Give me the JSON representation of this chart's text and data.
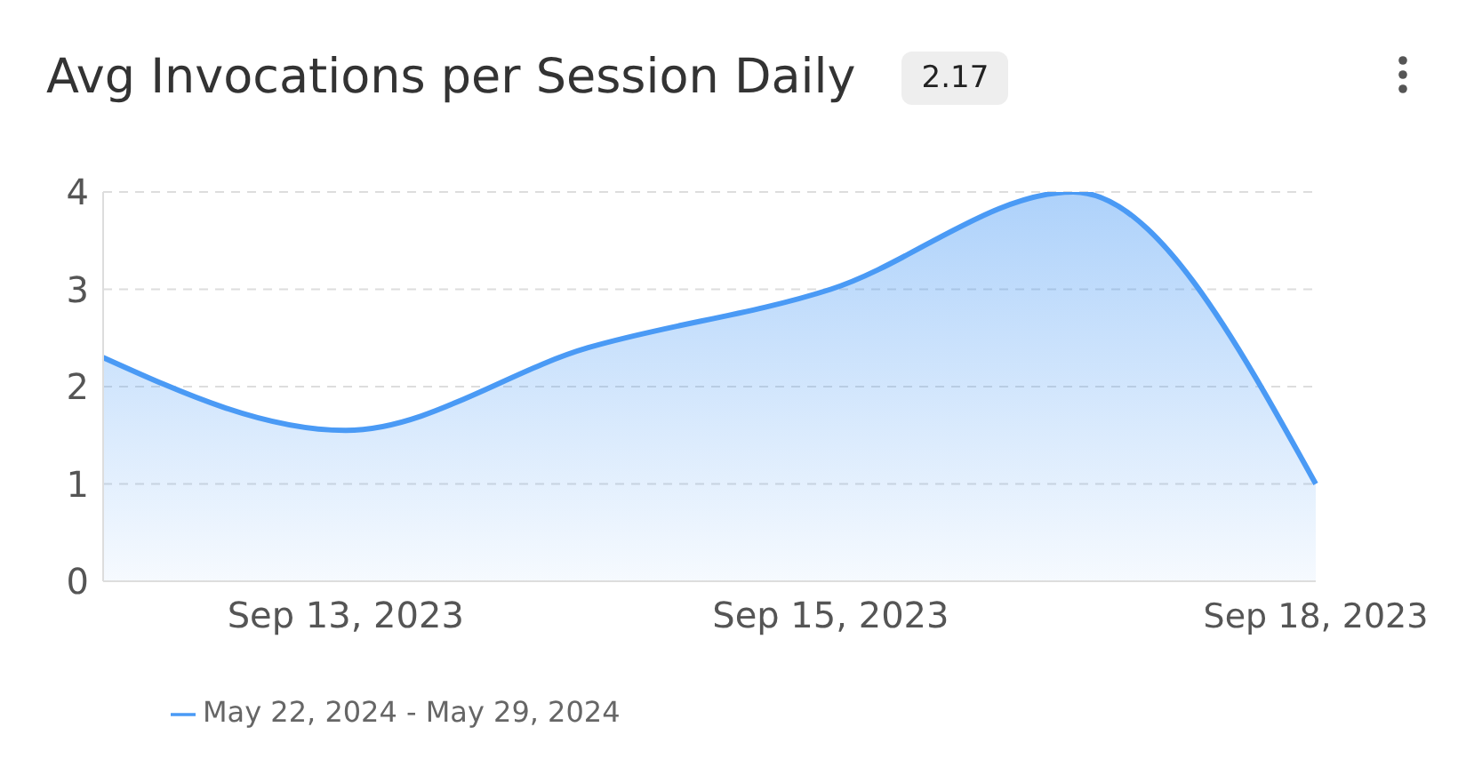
{
  "chart_data": {
    "type": "area",
    "title": "Avg Invocations per Session Daily",
    "annotations": [
      "2.17"
    ],
    "categories": [
      null,
      "Sep 13, 2023",
      null,
      "Sep 15, 2023",
      null,
      "Sep 18, 2023"
    ],
    "series": [
      {
        "name": "May 22, 2024 - May 29, 2024",
        "color": "#4a9af5",
        "values": [
          2.3,
          1.55,
          2.4,
          3.0,
          4.0,
          1.0
        ]
      }
    ],
    "ylim": [
      0,
      4
    ],
    "yticks": [
      0,
      1,
      2,
      3,
      4
    ],
    "grid": "y",
    "legend": "bottom left"
  }
}
